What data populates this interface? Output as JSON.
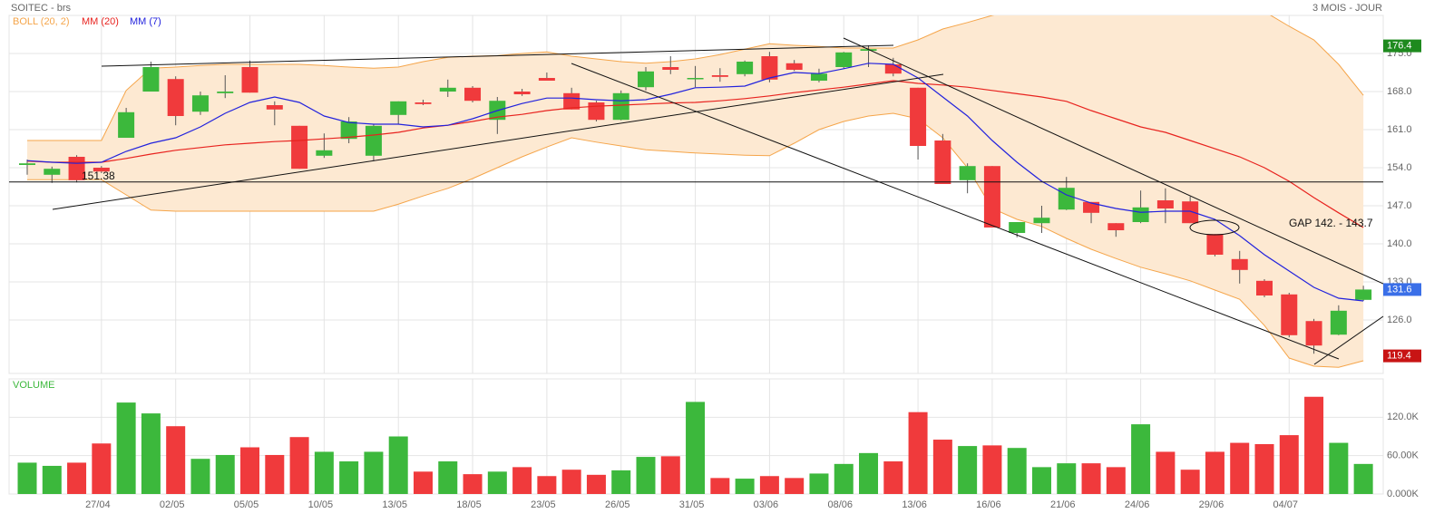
{
  "chart_data": {
    "type": "candlestick",
    "title": "SOITEC - brs",
    "period": "3 MOIS - JOUR",
    "categories": [
      null,
      null,
      null,
      "27/04",
      null,
      null,
      "02/05",
      null,
      null,
      "05/05",
      null,
      null,
      "10/05",
      null,
      null,
      "13/05",
      null,
      null,
      "18/05",
      null,
      null,
      "23/05",
      null,
      null,
      "26/05",
      null,
      null,
      "31/05",
      null,
      null,
      "03/06",
      null,
      null,
      "08/06",
      null,
      null,
      "13/06",
      null,
      null,
      "16/06",
      null,
      null,
      "21/06",
      null,
      null,
      "24/06",
      null,
      null,
      "29/06",
      null,
      null,
      "04/07",
      null,
      null,
      null
    ],
    "open": [
      154.5,
      152.7,
      156,
      154,
      159.5,
      168,
      170.3,
      164.3,
      167.7,
      172.5,
      165.5,
      161.7,
      156.2,
      159.3,
      156.2,
      163.7,
      166,
      168,
      168.7,
      162.8,
      168,
      170.5,
      167.7,
      166,
      162.8,
      168.8,
      172.5,
      170.3,
      171,
      171.2,
      174.5,
      173.2,
      170,
      172.5,
      175.5,
      173,
      168.7,
      159,
      151.7,
      154.3,
      142,
      143.8,
      146.3,
      147.7,
      143.8,
      144,
      148,
      147.8,
      141.8,
      137.2,
      133.2,
      130.7,
      125.8,
      123.3,
      129.7
    ],
    "high": [
      155.5,
      154.2,
      156.3,
      154.3,
      165,
      173.5,
      170.8,
      168,
      171,
      173.7,
      166.2,
      161.7,
      160.3,
      163.3,
      162,
      166.2,
      166.5,
      170.2,
      169,
      167,
      168.5,
      171.5,
      168.7,
      166.3,
      168.2,
      172.5,
      174.5,
      172.7,
      172.3,
      173.7,
      175.3,
      173.8,
      172.2,
      175.3,
      176.5,
      174.2,
      168.7,
      160.2,
      154.8,
      154.3,
      144,
      147,
      152.3,
      147.7,
      143.8,
      149.8,
      150.2,
      148.7,
      141.8,
      138.7,
      133.5,
      131,
      126.2,
      128.7,
      132.3
    ],
    "low": [
      152.7,
      151.2,
      151.3,
      153,
      159.5,
      168,
      161.8,
      163.7,
      166.8,
      167.8,
      161.8,
      153.8,
      155.8,
      158.5,
      155.2,
      162,
      165.5,
      167,
      166,
      160.2,
      167.2,
      170,
      164.7,
      162.5,
      162.7,
      168.2,
      171.2,
      168.8,
      169.8,
      170.8,
      169.7,
      171.8,
      169.7,
      172.2,
      172.5,
      170.8,
      155.5,
      151,
      149.3,
      143,
      141.2,
      142,
      146.2,
      143.8,
      141.3,
      143.8,
      143.8,
      143.8,
      137.7,
      132.7,
      130.2,
      122.8,
      119.8,
      123.2,
      129.5
    ],
    "close": [
      154.8,
      153.8,
      151.7,
      153.3,
      164.2,
      172.5,
      163.5,
      167.3,
      168,
      167.8,
      164.7,
      153.8,
      157.2,
      162.5,
      161.7,
      166.2,
      165.7,
      168.7,
      166.3,
      166.3,
      167.5,
      170,
      164.7,
      162.8,
      167.7,
      171.7,
      172,
      170.5,
      170.7,
      173.5,
      170.2,
      172,
      171.3,
      175.2,
      175.8,
      171.3,
      158,
      151,
      154.3,
      143,
      144,
      144.8,
      150.3,
      145.7,
      142.5,
      146.7,
      146.5,
      143.8,
      138,
      135.2,
      130.5,
      123.2,
      121.3,
      127.7,
      131.6
    ],
    "up_color": "#3cb83c",
    "down_color": "#f03a3c",
    "ylim": [
      116.17,
      182
    ],
    "yticks": [
      {
        "value": 126,
        "label": "126.0"
      },
      {
        "value": 133,
        "label": "133.0"
      },
      {
        "value": 140,
        "label": "140.0"
      },
      {
        "value": 147,
        "label": "147.0"
      },
      {
        "value": 154,
        "label": "154.0"
      },
      {
        "value": 161,
        "label": "161.0"
      },
      {
        "value": 168,
        "label": "168.0"
      },
      {
        "value": 175,
        "label": "175.0"
      }
    ],
    "grid": true,
    "overlays": [
      {
        "name": "BOLL (20, 2)",
        "color": "#f5a54a",
        "fill": "#fde9d2",
        "upper": [
          159,
          159,
          159,
          159,
          168.2,
          172.3,
          172.5,
          172.8,
          173,
          173,
          173,
          173,
          172.8,
          172.5,
          172.3,
          172.5,
          173.5,
          174.3,
          174.5,
          174.6,
          175,
          175.3,
          174.5,
          174,
          173.5,
          173.2,
          173.5,
          174,
          174.8,
          175.8,
          176.8,
          176.5,
          176.3,
          176,
          176,
          176,
          177.5,
          179.5,
          180.7,
          182,
          183,
          184,
          184.5,
          185,
          185,
          185.2,
          185,
          184.7,
          184.3,
          183.7,
          182.7,
          180,
          177.5,
          173,
          167.3
        ],
        "lower": [
          151.8,
          151.8,
          151.8,
          151.8,
          149,
          146.2,
          146,
          146,
          146,
          146,
          146,
          146,
          146,
          146,
          146,
          147.3,
          148.8,
          150.2,
          152,
          154,
          156,
          157.8,
          159.5,
          158.7,
          158,
          157.3,
          157,
          156.7,
          156.5,
          156.3,
          156.2,
          158.5,
          161,
          162.5,
          163.5,
          164,
          163,
          159.5,
          154,
          146.5,
          144.5,
          143.2,
          141,
          139,
          137.3,
          135.7,
          134.5,
          133.2,
          131.5,
          129.8,
          125,
          119,
          117.5,
          117.3,
          118.5
        ]
      },
      {
        "name": "MM (20)",
        "color": "#e8231f",
        "values": [
          155.2,
          155,
          155,
          155,
          155.7,
          156.5,
          157.2,
          157.7,
          158.2,
          158.5,
          158.8,
          159,
          159.3,
          159.6,
          160,
          160.5,
          161.3,
          161.8,
          162.5,
          163.3,
          163.8,
          164.5,
          165,
          165.3,
          165.5,
          165.7,
          165.9,
          166,
          166.3,
          166.7,
          167.2,
          167.8,
          168.3,
          168.8,
          169.4,
          170,
          169.5,
          169.2,
          168.8,
          168.2,
          167.6,
          167,
          166.2,
          164.5,
          163,
          161.5,
          160.5,
          159,
          157.5,
          156,
          154,
          151.5,
          148.5,
          145.7,
          143
        ]
      },
      {
        "name": "MM (7)",
        "color": "#2222dd",
        "values": [
          155.3,
          155,
          154.8,
          155,
          157,
          158.5,
          159.5,
          161.5,
          164,
          166,
          167,
          166,
          163.5,
          162.3,
          162,
          162,
          161.5,
          161.8,
          163,
          164.5,
          165.8,
          166.8,
          166.8,
          166.5,
          166.3,
          166.5,
          167.5,
          168.7,
          168.8,
          169,
          170.5,
          171.5,
          171.3,
          172.2,
          173.2,
          173,
          170.5,
          167,
          163.5,
          159,
          155,
          151.5,
          149,
          147.5,
          146.5,
          145.8,
          146,
          146,
          144.5,
          141.5,
          138,
          135,
          132,
          130,
          129.5
        ]
      }
    ],
    "reference_line": {
      "value": 151.38,
      "label": "151.38"
    },
    "annotation": "GAP 142. - 143.7",
    "price_markers": [
      {
        "value": 176.4,
        "label": "176.4",
        "color": "#1e8a1e"
      },
      {
        "value": 131.6,
        "label": "131.6",
        "color": "#3a6fe8"
      },
      {
        "value": 119.4,
        "label": "119.4",
        "color": "#c81414"
      }
    ],
    "volume": {
      "title": "VOLUME",
      "values": [
        49000,
        44000,
        49000,
        79000,
        143000,
        126000,
        106000,
        55000,
        61000,
        73000,
        61000,
        89000,
        66000,
        51000,
        66000,
        90000,
        35000,
        51000,
        31000,
        35000,
        42000,
        28000,
        38000,
        30000,
        37000,
        58000,
        59000,
        144000,
        25000,
        24000,
        28000,
        25000,
        32000,
        47000,
        64000,
        51000,
        128000,
        85000,
        75000,
        76000,
        72000,
        42000,
        48000,
        48000,
        42000,
        109000,
        66000,
        38000,
        66000,
        80000,
        78000,
        92000,
        152000,
        80000,
        47000
      ],
      "ylim": [
        0,
        180000
      ],
      "yticks": [
        {
          "value": 0,
          "label": "0.000K"
        },
        {
          "value": 60000,
          "label": "60.00K"
        },
        {
          "value": 120000,
          "label": "120.0K"
        }
      ]
    }
  }
}
